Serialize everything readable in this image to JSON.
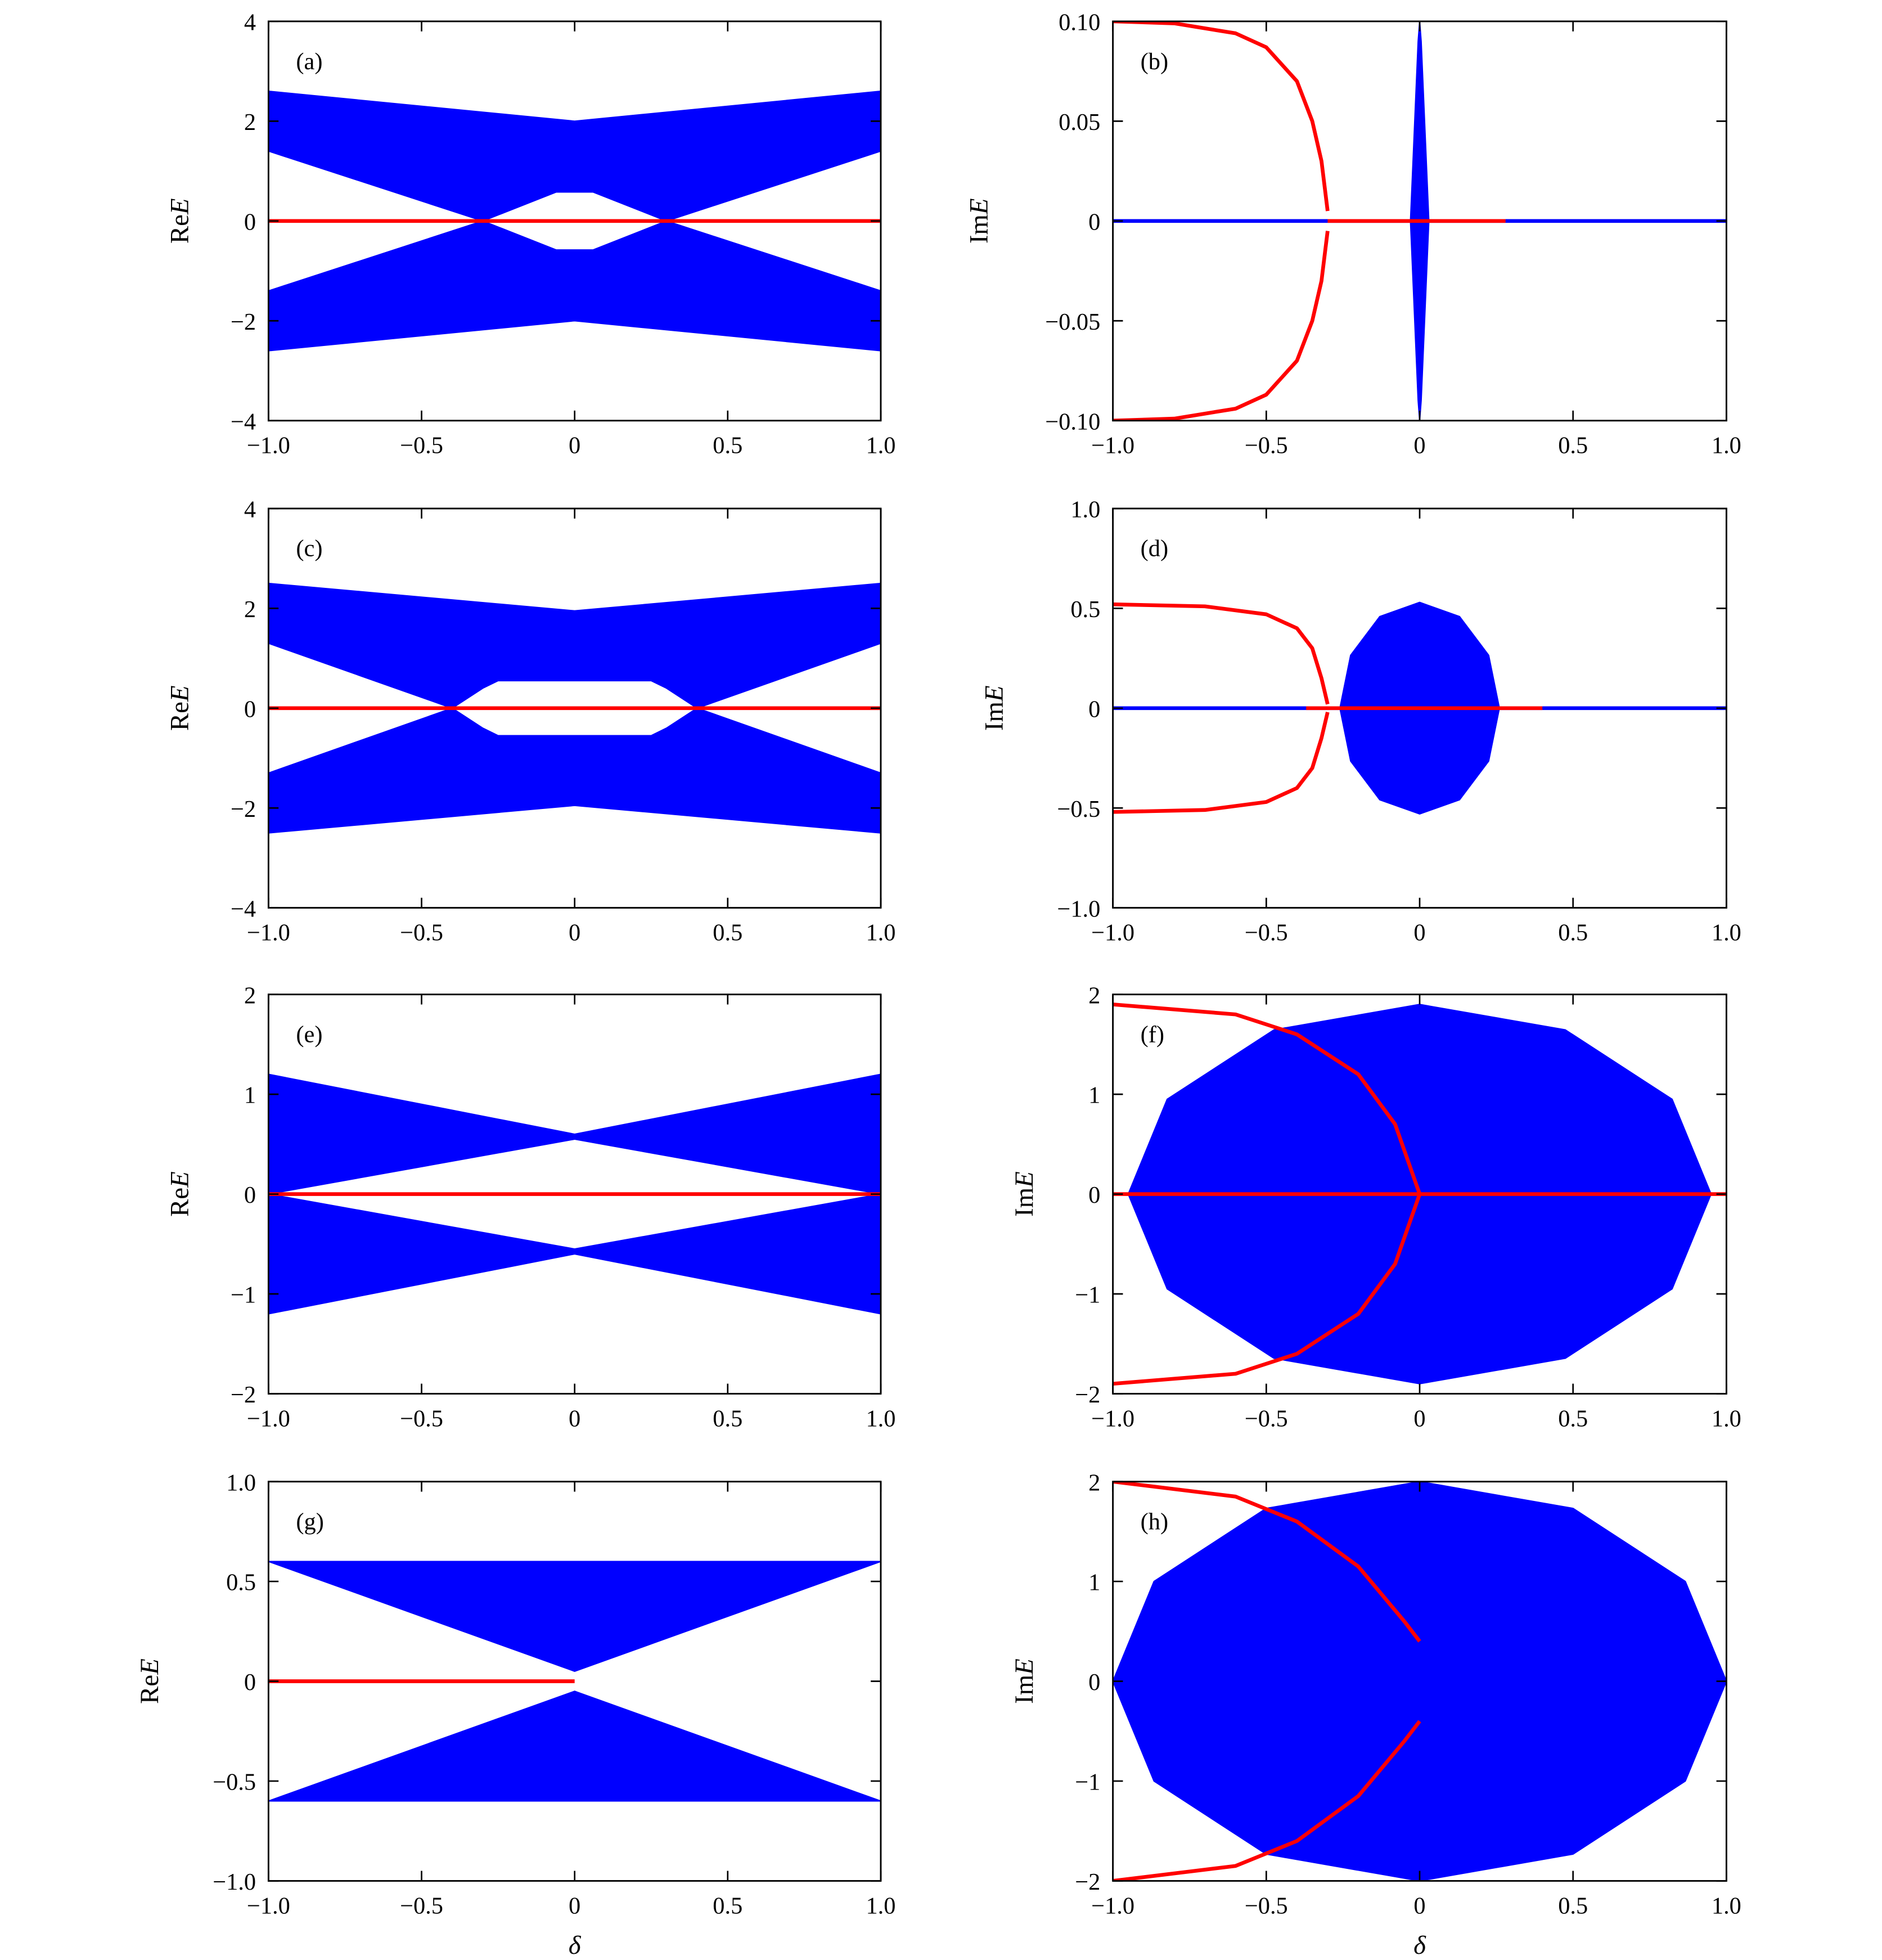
{
  "chart_data": [
    {
      "type": "line",
      "panel_label": "(a)",
      "ylabel": "ReE",
      "xlim": [
        -1,
        1
      ],
      "xticks": [
        {
          "value": -1,
          "label": "−1.0"
        },
        {
          "value": -0.5,
          "label": "−0.5"
        },
        0,
        0.5,
        {
          "value": 1,
          "label": "1.0"
        }
      ],
      "ylim": [
        -4,
        4
      ],
      "yticks": [
        {
          "value": -4,
          "label": "−4"
        },
        {
          "value": -2,
          "label": "−2"
        },
        0,
        2,
        4
      ],
      "series": [
        {
          "color": "#0000ff",
          "fill": true,
          "x": [
            -1,
            0,
            1,
            1,
            0.3,
            0.06,
            -0.06,
            -0.3,
            -1
          ],
          "values": [
            2.6,
            2,
            2.6,
            1.4,
            0,
            0.58,
            0.58,
            0,
            1.4
          ]
        },
        {
          "color": "#0000ff",
          "fill": true,
          "x": [
            -1,
            0,
            1,
            1,
            0.3,
            0.06,
            -0.06,
            -0.3,
            -1
          ],
          "values": [
            -2.6,
            -2,
            -2.6,
            -1.4,
            0,
            -0.58,
            -0.58,
            0,
            -1.4
          ]
        },
        {
          "color": "#ff0000",
          "fill": false,
          "x": [
            -1,
            1
          ],
          "values": [
            0,
            0
          ]
        }
      ]
    },
    {
      "type": "line",
      "panel_label": "(b)",
      "ylabel": "ImE",
      "xlim": [
        -1,
        1
      ],
      "xticks": [
        {
          "value": -1,
          "label": "−1.0"
        },
        {
          "value": -0.5,
          "label": "−0.5"
        },
        0,
        0.5,
        {
          "value": 1,
          "label": "1.0"
        }
      ],
      "ylim": [
        -0.1,
        0.1
      ],
      "yticks": [
        {
          "value": -0.1,
          "label": "−0.10"
        },
        {
          "value": -0.05,
          "label": "−0.05"
        },
        0,
        0.05,
        {
          "value": 0.1,
          "label": "0.10"
        }
      ],
      "series": [
        {
          "color": "#0000ff",
          "fill": false,
          "x": [
            -1,
            1
          ],
          "values": [
            0,
            0
          ]
        },
        {
          "color": "#0000ff",
          "fill": true,
          "x": [
            -0.03,
            -0.005,
            0,
            0.005,
            0.03,
            0.005,
            0,
            -0.005
          ],
          "values": [
            0,
            0.09,
            0.1,
            0.09,
            0,
            -0.09,
            -0.1,
            -0.09
          ]
        },
        {
          "color": "#ff0000",
          "fill": false,
          "x": [
            -1,
            -0.8,
            -0.6,
            -0.5,
            -0.4,
            -0.35,
            -0.32,
            -0.3
          ],
          "values": [
            0.1,
            0.099,
            0.094,
            0.087,
            0.07,
            0.05,
            0.03,
            0.005
          ]
        },
        {
          "color": "#ff0000",
          "fill": false,
          "x": [
            -1,
            -0.8,
            -0.6,
            -0.5,
            -0.4,
            -0.35,
            -0.32,
            -0.3
          ],
          "values": [
            -0.1,
            -0.099,
            -0.094,
            -0.087,
            -0.07,
            -0.05,
            -0.03,
            -0.005
          ]
        },
        {
          "color": "#ff0000",
          "fill": false,
          "x": [
            -0.3,
            0.28
          ],
          "values": [
            0,
            0
          ]
        }
      ]
    },
    {
      "type": "line",
      "panel_label": "(c)",
      "ylabel": "ReE",
      "xlim": [
        -1,
        1
      ],
      "xticks": [
        {
          "value": -1,
          "label": "−1.0"
        },
        {
          "value": -0.5,
          "label": "−0.5"
        },
        0,
        0.5,
        {
          "value": 1,
          "label": "1.0"
        }
      ],
      "ylim": [
        -4,
        4
      ],
      "yticks": [
        {
          "value": -4,
          "label": "−4"
        },
        {
          "value": -2,
          "label": "−2"
        },
        0,
        2,
        4
      ],
      "series": [
        {
          "color": "#0000ff",
          "fill": true,
          "x": [
            -1,
            0,
            1,
            1,
            0.4,
            0.3,
            0.25,
            -0.25,
            -0.3,
            -0.4,
            -1
          ],
          "values": [
            2.5,
            1.95,
            2.5,
            1.3,
            0,
            0.4,
            0.55,
            0.55,
            0.4,
            0,
            1.3
          ]
        },
        {
          "color": "#0000ff",
          "fill": true,
          "x": [
            -1,
            0,
            1,
            1,
            0.4,
            0.3,
            0.25,
            -0.25,
            -0.3,
            -0.4,
            -1
          ],
          "values": [
            -2.5,
            -1.95,
            -2.5,
            -1.3,
            0,
            -0.4,
            -0.55,
            -0.55,
            -0.4,
            0,
            -1.3
          ]
        },
        {
          "color": "#ff0000",
          "fill": false,
          "x": [
            -1,
            1
          ],
          "values": [
            0,
            0
          ]
        }
      ]
    },
    {
      "type": "line",
      "panel_label": "(d)",
      "ylabel": "ImE",
      "xlim": [
        -1,
        1
      ],
      "xticks": [
        {
          "value": -1,
          "label": "−1.0"
        },
        {
          "value": -0.5,
          "label": "−0.5"
        },
        0,
        0.5,
        {
          "value": 1,
          "label": "1.0"
        }
      ],
      "ylim": [
        -1,
        1
      ],
      "yticks": [
        {
          "value": -1,
          "label": "−1.0"
        },
        {
          "value": -0.5,
          "label": "−0.5"
        },
        0,
        0.5,
        {
          "value": 1,
          "label": "1.0"
        }
      ],
      "series": [
        {
          "color": "#0000ff",
          "fill": true,
          "x": [
            0.26,
            0.225,
            0.13,
            0,
            -0.13,
            -0.225,
            -0.26,
            -0.225,
            -0.13,
            0,
            0.13,
            0.225
          ],
          "values": [
            0,
            0.265,
            0.459,
            0.53,
            0.459,
            0.265,
            0,
            -0.265,
            -0.459,
            -0.53,
            -0.459,
            -0.265
          ]
        },
        {
          "color": "#0000ff",
          "fill": false,
          "x": [
            -1,
            1
          ],
          "values": [
            0,
            0
          ]
        },
        {
          "color": "#ff0000",
          "fill": false,
          "x": [
            -1,
            -0.7,
            -0.5,
            -0.4,
            -0.35,
            -0.32,
            -0.3
          ],
          "values": [
            0.52,
            0.51,
            0.47,
            0.4,
            0.3,
            0.15,
            0.02
          ]
        },
        {
          "color": "#ff0000",
          "fill": false,
          "x": [
            -1,
            -0.7,
            -0.5,
            -0.4,
            -0.35,
            -0.32,
            -0.3
          ],
          "values": [
            -0.52,
            -0.51,
            -0.47,
            -0.4,
            -0.3,
            -0.15,
            -0.02
          ]
        },
        {
          "color": "#ff0000",
          "fill": false,
          "x": [
            -0.37,
            0.4
          ],
          "values": [
            0,
            0
          ]
        }
      ]
    },
    {
      "type": "line",
      "panel_label": "(e)",
      "ylabel": "ReE",
      "xlim": [
        -1,
        1
      ],
      "xticks": [
        {
          "value": -1,
          "label": "−1.0"
        },
        {
          "value": -0.5,
          "label": "−0.5"
        },
        0,
        0.5,
        {
          "value": 1,
          "label": "1.0"
        }
      ],
      "ylim": [
        -2,
        2
      ],
      "yticks": [
        {
          "value": -2,
          "label": "−2"
        },
        {
          "value": -1,
          "label": "−1"
        },
        0,
        1,
        2
      ],
      "series": [
        {
          "color": "#0000ff",
          "fill": true,
          "x": [
            -1,
            0,
            1,
            1,
            0,
            -1
          ],
          "values": [
            1.2,
            0.6,
            1.2,
            0,
            0.55,
            0
          ]
        },
        {
          "color": "#0000ff",
          "fill": true,
          "x": [
            -1,
            0,
            1,
            1,
            0,
            -1
          ],
          "values": [
            -1.2,
            -0.6,
            -1.2,
            0,
            -0.55,
            0
          ]
        },
        {
          "color": "#ff0000",
          "fill": false,
          "x": [
            -1,
            1
          ],
          "values": [
            0,
            0
          ]
        }
      ]
    },
    {
      "type": "line",
      "panel_label": "(f)",
      "ylabel": "ImE",
      "xlim": [
        -1,
        1
      ],
      "xticks": [
        {
          "value": -1,
          "label": "−1.0"
        },
        {
          "value": -0.5,
          "label": "−0.5"
        },
        0,
        0.5,
        {
          "value": 1,
          "label": "1.0"
        }
      ],
      "ylim": [
        -2,
        2
      ],
      "yticks": [
        {
          "value": -2,
          "label": "−2"
        },
        {
          "value": -1,
          "label": "−1"
        },
        0,
        1,
        2
      ],
      "series": [
        {
          "color": "#0000ff",
          "fill": true,
          "x": [
            0.95,
            0.823,
            0.475,
            0,
            -0.475,
            -0.823,
            -0.95,
            -0.823,
            -0.475,
            0,
            0.475,
            0.823
          ],
          "values": [
            0,
            0.95,
            1.645,
            1.9,
            1.645,
            0.95,
            0,
            -0.95,
            -1.645,
            -1.9,
            -1.645,
            -0.95
          ]
        },
        {
          "color": "#ff0000",
          "fill": false,
          "x": [
            -1,
            1
          ],
          "values": [
            0,
            0
          ]
        },
        {
          "color": "#ff0000",
          "fill": false,
          "x": [
            -1,
            -0.6,
            -0.4,
            -0.2,
            -0.08,
            0
          ],
          "values": [
            1.9,
            1.8,
            1.6,
            1.2,
            0.7,
            0
          ]
        },
        {
          "color": "#ff0000",
          "fill": false,
          "x": [
            -1,
            -0.6,
            -0.4,
            -0.2,
            -0.08,
            0
          ],
          "values": [
            -1.9,
            -1.8,
            -1.6,
            -1.2,
            -0.7,
            0
          ]
        }
      ]
    },
    {
      "type": "line",
      "panel_label": "(g)",
      "ylabel": "ReE",
      "xlabel": "δ",
      "xlim": [
        -1,
        1
      ],
      "xticks": [
        {
          "value": -1,
          "label": "−1.0"
        },
        {
          "value": -0.5,
          "label": "−0.5"
        },
        0,
        0.5,
        {
          "value": 1,
          "label": "1.0"
        }
      ],
      "ylim": [
        -1,
        1
      ],
      "yticks": [
        {
          "value": -1,
          "label": "−1.0"
        },
        {
          "value": -0.5,
          "label": "−0.5"
        },
        0,
        0.5,
        {
          "value": 1,
          "label": "1.0"
        }
      ],
      "series": [
        {
          "color": "#0000ff",
          "fill": true,
          "x": [
            -1,
            1,
            0
          ],
          "values": [
            0.6,
            0.6,
            0.05
          ]
        },
        {
          "color": "#0000ff",
          "fill": true,
          "x": [
            -1,
            1,
            0
          ],
          "values": [
            -0.6,
            -0.6,
            -0.05
          ]
        },
        {
          "color": "#ff0000",
          "fill": false,
          "x": [
            -1,
            0
          ],
          "values": [
            0,
            0
          ]
        }
      ]
    },
    {
      "type": "line",
      "panel_label": "(h)",
      "ylabel": "ImE",
      "xlabel": "δ",
      "xlim": [
        -1,
        1
      ],
      "xticks": [
        {
          "value": -1,
          "label": "−1.0"
        },
        {
          "value": -0.5,
          "label": "−0.5"
        },
        0,
        0.5,
        {
          "value": 1,
          "label": "1.0"
        }
      ],
      "ylim": [
        -2,
        2
      ],
      "yticks": [
        {
          "value": -2,
          "label": "−2"
        },
        {
          "value": -1,
          "label": "−1"
        },
        0,
        1,
        2
      ],
      "series": [
        {
          "color": "#0000ff",
          "fill": true,
          "x": [
            1,
            0.866,
            0.5,
            0,
            -0.5,
            -0.866,
            -1,
            -0.866,
            -0.5,
            0,
            0.5,
            0.866
          ],
          "values": [
            0,
            1,
            1.732,
            2,
            1.732,
            1,
            0,
            -1,
            -1.732,
            -2,
            -1.732,
            -1
          ]
        },
        {
          "color": "#ff0000",
          "fill": false,
          "x": [
            -1,
            -0.6,
            -0.4,
            -0.2,
            -0.05,
            0
          ],
          "values": [
            2,
            1.85,
            1.6,
            1.15,
            0.6,
            0.4
          ]
        },
        {
          "color": "#ff0000",
          "fill": false,
          "x": [
            -1,
            -0.6,
            -0.4,
            -0.2,
            -0.05,
            0
          ],
          "values": [
            -2,
            -1.85,
            -1.6,
            -1.15,
            -0.6,
            -0.4
          ]
        }
      ]
    }
  ]
}
